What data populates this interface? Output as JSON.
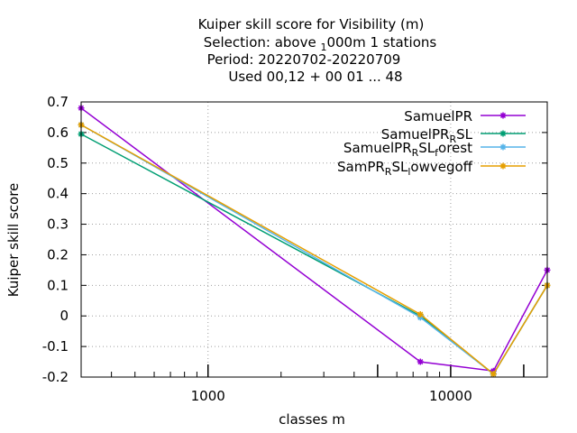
{
  "chart_data": {
    "type": "line",
    "title_lines": [
      "Kuiper skill score  for Visibility (m)",
      "Selection: above 1000m      1 stations",
      "Period: 20220702-20220709",
      "Used  00,12  + 00 01 ... 48"
    ],
    "xlabel": "classes m",
    "ylabel": "Kuiper skill score",
    "x_scale": "log",
    "xlim": [
      300,
      25000
    ],
    "ylim": [
      -0.2,
      0.7
    ],
    "yticks": [
      "0.7",
      "0.6",
      "0.5",
      "0.4",
      "0.3",
      "0.2",
      "0.1",
      "0",
      "-0.1",
      "-0.2"
    ],
    "ytick_values": [
      0.7,
      0.6,
      0.5,
      0.4,
      0.3,
      0.2,
      0.1,
      0,
      -0.1,
      -0.2
    ],
    "xticks": [
      "1000",
      "10000"
    ],
    "xtick_values": [
      1000,
      10000
    ],
    "x_extra_ticks": [
      5000,
      20000
    ],
    "grid": true,
    "legend_position": "top-right",
    "series": [
      {
        "name": "SamuelPR",
        "color": "#9400d3",
        "x": [
          300,
          7500,
          15000,
          25000
        ],
        "y": [
          0.68,
          -0.15,
          -0.18,
          0.15
        ]
      },
      {
        "name": "SamuelPR_R SL",
        "color": "#009e73",
        "x": [
          300,
          7500,
          15000,
          25000
        ],
        "y": [
          0.595,
          0.0,
          -0.19,
          0.1
        ]
      },
      {
        "name": "SamuelPR_R SL_forest",
        "color": "#56b4e9",
        "x": [
          300,
          7500,
          15000,
          25000
        ],
        "y": [
          0.625,
          -0.005,
          -0.19,
          0.1
        ]
      },
      {
        "name": "SamPR_R SL_lowvegoff",
        "color": "#e69f00",
        "x": [
          300,
          7500,
          15000,
          25000
        ],
        "y": [
          0.625,
          0.005,
          -0.19,
          0.1
        ]
      }
    ]
  }
}
